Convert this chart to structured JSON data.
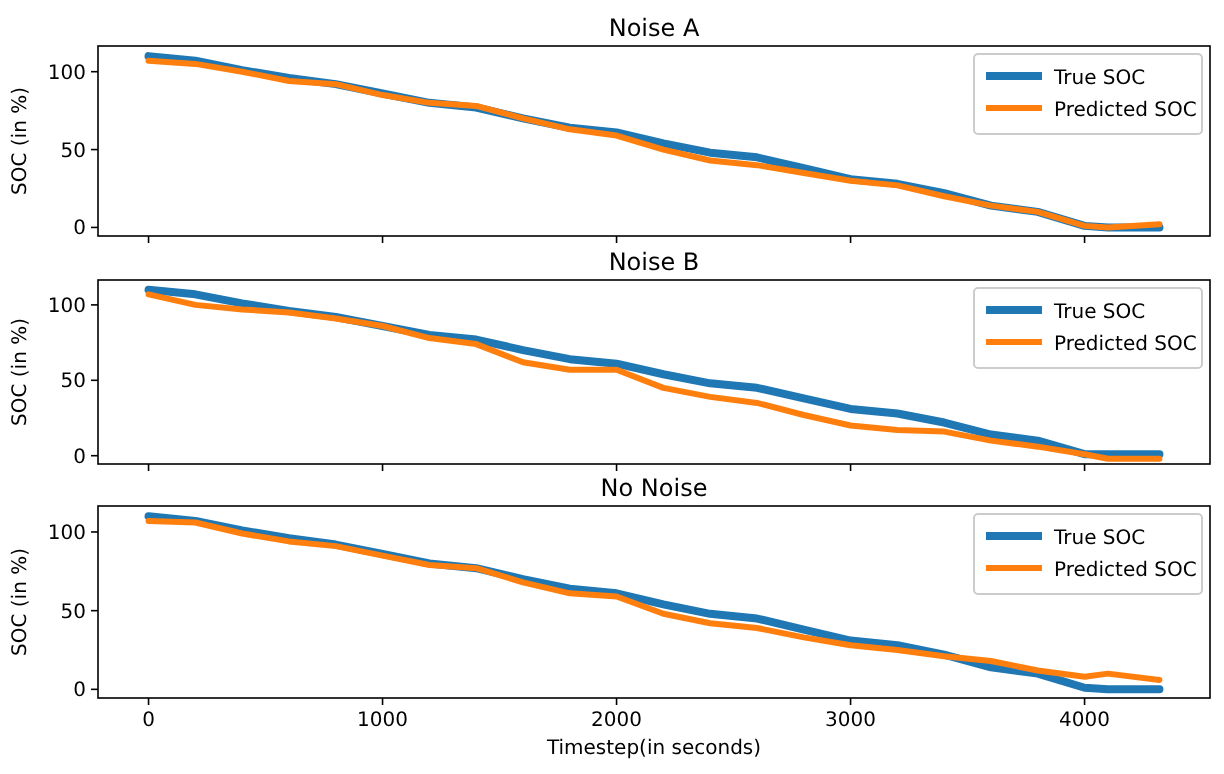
{
  "chart_data": [
    {
      "type": "line",
      "title": "Noise A",
      "ylabel": "SOC (in %)",
      "x": [
        0,
        200,
        400,
        600,
        800,
        1000,
        1200,
        1400,
        1600,
        1800,
        2000,
        2200,
        2400,
        2600,
        2800,
        3000,
        3200,
        3400,
        3600,
        3800,
        4000,
        4100,
        4320
      ],
      "xlim": [
        -216,
        4536
      ],
      "xticks": [
        0,
        1000,
        2000,
        3000,
        4000
      ],
      "ylim": [
        -5.5,
        116.5
      ],
      "yticks": [
        0,
        50,
        100
      ],
      "tick_labels": "y",
      "legend": "top right",
      "grid": false,
      "series": [
        {
          "name": "True SOC",
          "color": "#1f77b4",
          "values": [
            110,
            107,
            101,
            96,
            92,
            86,
            80,
            77,
            70,
            64,
            61,
            54,
            48,
            45,
            38,
            31,
            28,
            22,
            14,
            10,
            1,
            0,
            0
          ]
        },
        {
          "name": "Predicted SOC",
          "color": "#ff7f0e",
          "values": [
            107,
            105,
            100,
            94,
            92,
            85,
            80,
            78,
            70,
            63,
            59,
            50,
            43,
            40,
            35,
            30,
            27,
            20,
            14,
            10,
            1,
            0,
            2
          ]
        }
      ]
    },
    {
      "type": "line",
      "title": "Noise B",
      "ylabel": "SOC (in %)",
      "x": [
        0,
        200,
        400,
        600,
        800,
        1000,
        1200,
        1400,
        1600,
        1800,
        2000,
        2200,
        2400,
        2600,
        2800,
        3000,
        3200,
        3400,
        3600,
        3800,
        4000,
        4100,
        4320
      ],
      "xlim": [
        -216,
        4536
      ],
      "xticks": [
        0,
        1000,
        2000,
        3000,
        4000
      ],
      "ylim": [
        -5.5,
        116.5
      ],
      "yticks": [
        0,
        50,
        100
      ],
      "tick_labels": "y",
      "legend": "top right",
      "grid": false,
      "series": [
        {
          "name": "True SOC",
          "color": "#1f77b4",
          "values": [
            110,
            107,
            101,
            96,
            92,
            86,
            80,
            77,
            70,
            64,
            61,
            54,
            48,
            45,
            38,
            31,
            28,
            22,
            14,
            10,
            1,
            1,
            1
          ]
        },
        {
          "name": "Predicted SOC",
          "color": "#ff7f0e",
          "values": [
            107,
            100,
            97,
            95,
            91,
            86,
            78,
            74,
            62,
            57,
            57,
            45,
            39,
            35,
            27,
            20,
            17,
            16,
            10,
            6,
            1,
            -2,
            -2
          ]
        }
      ]
    },
    {
      "type": "line",
      "title": "No Noise",
      "xlabel": "Timestep(in seconds)",
      "ylabel": "SOC (in %)",
      "x": [
        0,
        200,
        400,
        600,
        800,
        1000,
        1200,
        1400,
        1600,
        1800,
        2000,
        2200,
        2400,
        2600,
        2800,
        3000,
        3200,
        3400,
        3600,
        3800,
        4000,
        4100,
        4320
      ],
      "xlim": [
        -216,
        4536
      ],
      "xticks": [
        0,
        1000,
        2000,
        3000,
        4000
      ],
      "ylim": [
        -5.5,
        116.5
      ],
      "yticks": [
        0,
        50,
        100
      ],
      "legend": "top right",
      "grid": false,
      "series": [
        {
          "name": "True SOC",
          "color": "#1f77b4",
          "values": [
            110,
            107,
            101,
            96,
            92,
            86,
            80,
            77,
            70,
            64,
            61,
            54,
            48,
            45,
            38,
            31,
            28,
            22,
            14,
            10,
            1,
            0,
            0
          ]
        },
        {
          "name": "Predicted SOC",
          "color": "#ff7f0e",
          "values": [
            107,
            106,
            99,
            94,
            91,
            85,
            79,
            77,
            68,
            61,
            59,
            48,
            42,
            39,
            33,
            28,
            25,
            21,
            18,
            12,
            8,
            10,
            6
          ]
        }
      ]
    }
  ]
}
